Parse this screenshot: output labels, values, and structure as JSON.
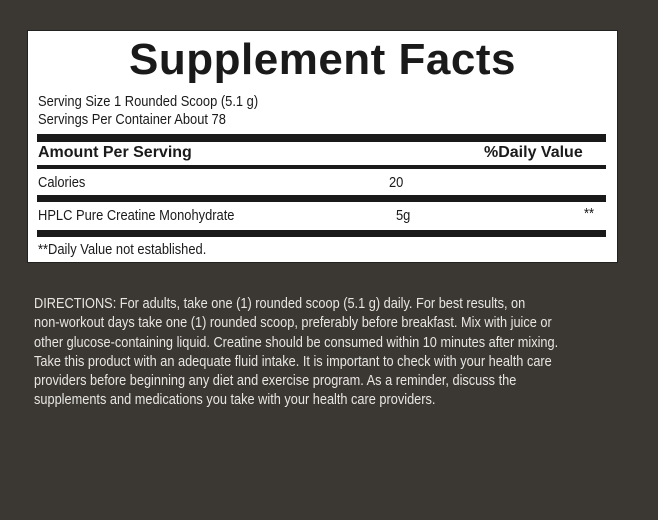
{
  "label": {
    "title": "Supplement Facts",
    "serving_size": "Serving Size 1 Rounded Scoop (5.1 g)",
    "servings_per_container": "Servings Per Container About 78",
    "header_amount": "Amount Per Serving",
    "header_dv": "%Daily Value",
    "rows": [
      {
        "name": "Calories",
        "amount": "20",
        "dv": ""
      },
      {
        "name": "HPLC Pure Creatine Monohydrate",
        "amount": "5g",
        "dv": "**"
      }
    ],
    "footnote": "**Daily Value not established."
  },
  "directions": {
    "lines": [
      "DIRECTIONS: For adults, take one (1) rounded scoop (5.1 g) daily. For best results, on",
      "non-workout days take one (1) rounded scoop, preferably before breakfast.  Mix with juice or",
      "other glucose-containing liquid. Creatine should be consumed within 10 minutes after mixing.",
      "Take this product with an adequate fluid intake. It is important to check with your health care",
      "providers before beginning any diet and exercise program. As a reminder, discuss the",
      "supplements and medications you take with your health care providers."
    ]
  },
  "colors": {
    "background": "#3b3834",
    "panel": "#ffffff",
    "text": "#1a1a1a"
  }
}
